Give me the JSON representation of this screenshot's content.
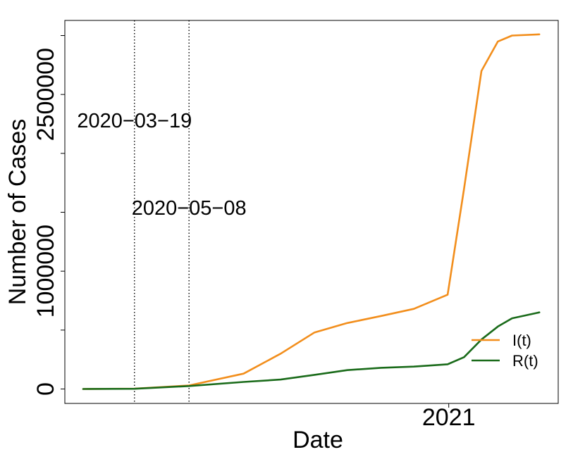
{
  "chart_data": {
    "type": "line",
    "title": "",
    "xlabel": "Date",
    "ylabel": "Number of Cases",
    "x_tick_labels": [
      "2021"
    ],
    "y_tick_labels": [
      "0",
      "1000000",
      "2500000"
    ],
    "ylim": [
      0,
      3100000
    ],
    "grid": false,
    "legend_position": "bottom-right",
    "vlines": [
      {
        "date": "2020-03-19",
        "label": "2020−03−19"
      },
      {
        "date": "2020-05-08",
        "label": "2020−05−08"
      }
    ],
    "x": [
      "2020-02-01",
      "2020-03-19",
      "2020-05-08",
      "2020-06-27",
      "2020-07-31",
      "2020-08-31",
      "2020-09-30",
      "2020-10-31",
      "2020-11-30",
      "2020-12-31",
      "2021-01-15",
      "2021-01-31",
      "2021-02-15",
      "2021-02-28",
      "2021-03-25"
    ],
    "series": [
      {
        "name": "I(t)",
        "color": "#f28e1c",
        "values": [
          0,
          3000,
          30000,
          130000,
          300000,
          480000,
          560000,
          620000,
          680000,
          800000,
          1700000,
          2700000,
          2950000,
          3000000,
          3010000
        ]
      },
      {
        "name": "R(t)",
        "color": "#1a6b1a",
        "values": [
          0,
          2000,
          25000,
          60000,
          80000,
          120000,
          160000,
          180000,
          190000,
          210000,
          270000,
          420000,
          530000,
          600000,
          650000
        ]
      }
    ]
  }
}
